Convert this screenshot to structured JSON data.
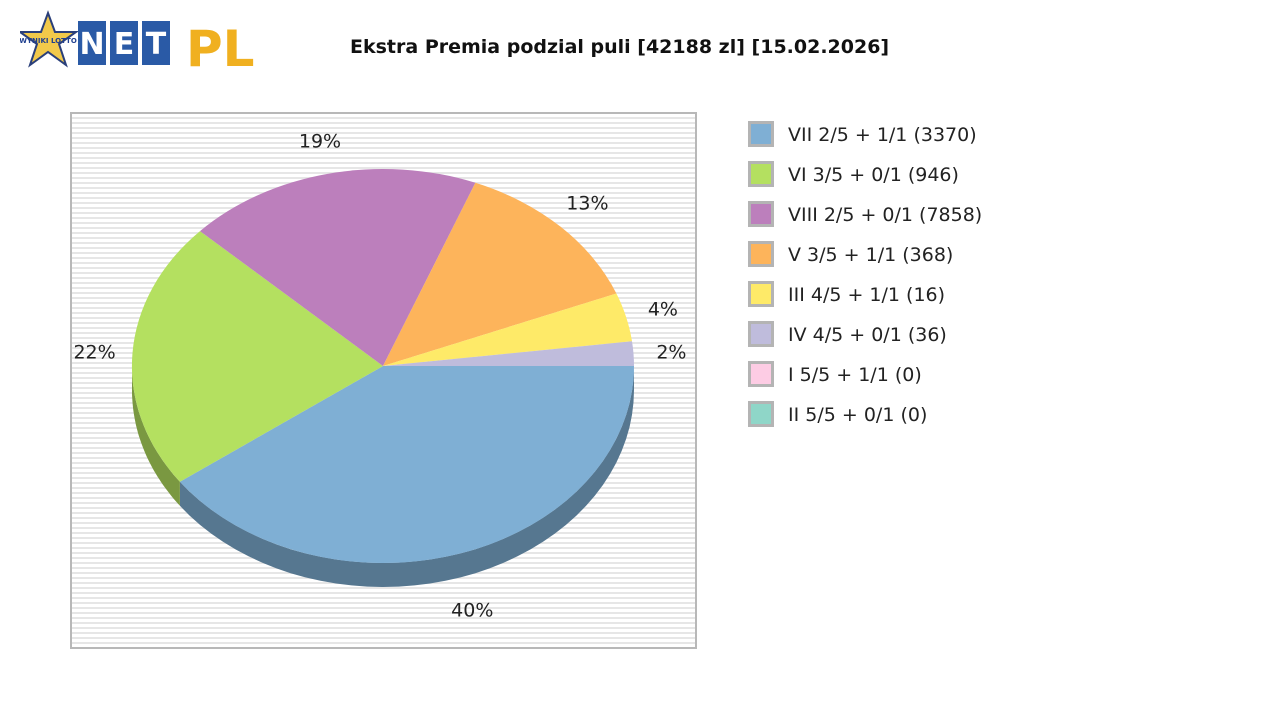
{
  "logo": {
    "badge_text": "WYNIKI LOTTO",
    "brand_left": "NET",
    "brand_right": "PL"
  },
  "chart_data": {
    "type": "pie",
    "title": "Ekstra Premia podzial puli [42188 zl] [15.02.2026]",
    "slices": [
      {
        "label": "VII 2/5 + 1/1 (3370)",
        "value": 40,
        "pct_label": "40%",
        "color": "#7fafd4"
      },
      {
        "label": "VI 3/5 + 0/1 (946)",
        "value": 22,
        "pct_label": "22%",
        "color": "#b4e060"
      },
      {
        "label": "VIII 2/5 + 0/1 (7858)",
        "value": 19,
        "pct_label": "19%",
        "color": "#bc7fbc"
      },
      {
        "label": "V 3/5 + 1/1 (368)",
        "value": 13,
        "pct_label": "13%",
        "color": "#fdb45b"
      },
      {
        "label": "III 4/5 + 1/1 (16)",
        "value": 4,
        "pct_label": "4%",
        "color": "#feea68"
      },
      {
        "label": "IV 4/5 + 0/1 (36)",
        "value": 2,
        "pct_label": "2%",
        "color": "#bfbcdc"
      },
      {
        "label": "I 5/5 + 1/1 (0)",
        "value": 0,
        "pct_label": "",
        "color": "#fdcce4"
      },
      {
        "label": "II 5/5 + 0/1 (0)",
        "value": 0,
        "pct_label": "",
        "color": "#8fd6c8"
      }
    ],
    "legend_position": "right",
    "grid": false
  }
}
